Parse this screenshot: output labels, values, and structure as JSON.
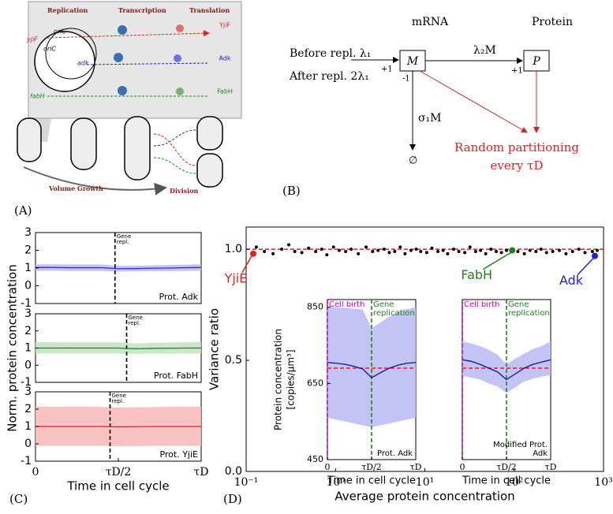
{
  "panel_labels": [
    "(A)",
    "(B)",
    "(C)",
    "(D)"
  ],
  "panel_a": {
    "stages": [
      "Replication",
      "Transcription",
      "Translation"
    ],
    "ori_labels": [
      "oriC",
      "oriC"
    ],
    "genes": [
      "yjiF",
      "adk",
      "fabH"
    ],
    "proteins": [
      "YjiF",
      "Adk",
      "FabH"
    ],
    "bottom": [
      "Volume Growth",
      "Division"
    ]
  },
  "panel_b": {
    "headers": [
      "mRNA",
      "Protein"
    ],
    "inputs": [
      "Before repl. λ₁",
      "After repl. 2λ₁"
    ],
    "m_in": "+1",
    "m_node": "M",
    "m_out": "-1",
    "translation": "λ₂M",
    "p_in": "+1",
    "p_node": "P",
    "degradation": "σ₁M",
    "sink": "∅",
    "partition": [
      "Random partitioning",
      "every τD"
    ]
  },
  "chart_data": [
    {
      "type": "line",
      "xlim": [
        0,
        1
      ],
      "ylim": [
        -1,
        3
      ],
      "yticks": [
        -1,
        0,
        1,
        2,
        3
      ],
      "x": [
        0,
        0.1,
        0.2,
        0.3,
        0.4,
        0.5,
        0.6,
        0.7,
        0.8,
        0.9,
        1
      ],
      "series": [
        {
          "name": "Prot. Adk",
          "color": "#3030d0",
          "band_color": "#b8b8f4",
          "values": [
            1.03,
            1.03,
            1.02,
            1.02,
            1.02,
            0.96,
            0.97,
            0.99,
            1.0,
            1.02,
            1.03
          ],
          "lower": [
            0.85,
            0.85,
            0.84,
            0.84,
            0.84,
            0.8,
            0.81,
            0.82,
            0.83,
            0.84,
            0.85
          ],
          "upper": [
            1.21,
            1.21,
            1.2,
            1.2,
            1.2,
            1.12,
            1.13,
            1.15,
            1.17,
            1.19,
            1.21
          ]
        }
      ],
      "vlines": [
        {
          "x": 0.48,
          "label": "Gene repl.",
          "color": "#000000"
        }
      ]
    },
    {
      "type": "line",
      "xlim": [
        0,
        1
      ],
      "ylim": [
        -1,
        3
      ],
      "yticks": [
        -1,
        0,
        1,
        2,
        3
      ],
      "ylabel": "Norm. protein concentration",
      "x": [
        0,
        0.1,
        0.2,
        0.3,
        0.4,
        0.5,
        0.6,
        0.7,
        0.8,
        0.9,
        1
      ],
      "series": [
        {
          "name": "Prot. FabH",
          "color": "#208020",
          "band_color": "#bfe3bf",
          "values": [
            1.0,
            1.0,
            1.0,
            1.0,
            1.0,
            1.0,
            0.96,
            0.98,
            0.99,
            1.0,
            1.0
          ],
          "lower": [
            0.68,
            0.68,
            0.68,
            0.68,
            0.68,
            0.68,
            0.66,
            0.67,
            0.67,
            0.68,
            0.68
          ],
          "upper": [
            1.35,
            1.35,
            1.34,
            1.34,
            1.34,
            1.34,
            1.27,
            1.3,
            1.32,
            1.34,
            1.35
          ]
        }
      ],
      "vlines": [
        {
          "x": 0.55,
          "label": "Gene repl.",
          "color": "#000000"
        }
      ]
    },
    {
      "type": "line",
      "xlim": [
        0,
        1
      ],
      "ylim": [
        -1,
        3
      ],
      "yticks": [
        -1,
        0,
        1,
        2,
        3
      ],
      "xticks": [
        0,
        {
          "value": 0.5,
          "label": "τD/2"
        },
        {
          "value": 1,
          "label": "τD"
        }
      ],
      "xlabel": "Time in cell cycle",
      "x": [
        0,
        0.1,
        0.2,
        0.3,
        0.4,
        0.5,
        0.6,
        0.7,
        0.8,
        0.9,
        1
      ],
      "series": [
        {
          "name": "Prot. YjiE",
          "color": "#e02020",
          "band_color": "#f9b8b8",
          "values": [
            1.0,
            1.0,
            1.0,
            1.0,
            1.0,
            0.98,
            0.99,
            1.0,
            1.0,
            1.0,
            1.0
          ],
          "lower": [
            -0.12,
            -0.12,
            -0.12,
            -0.12,
            -0.12,
            -0.14,
            -0.13,
            -0.12,
            -0.12,
            -0.12,
            -0.12
          ],
          "upper": [
            2.15,
            2.15,
            2.14,
            2.14,
            2.13,
            2.1,
            2.11,
            2.12,
            2.13,
            2.14,
            2.15
          ]
        }
      ],
      "vlines": [
        {
          "x": 0.45,
          "label": "Gene repl.",
          "color": "#000000"
        }
      ]
    },
    {
      "type": "scatter",
      "xlog": true,
      "xlim": [
        0.1,
        1000
      ],
      "ylim": [
        0,
        1.1
      ],
      "xticks": [
        {
          "value": 0.1,
          "label": "10⁻¹"
        },
        {
          "value": 1,
          "label": "10⁰"
        },
        {
          "value": 10,
          "label": "10¹"
        },
        {
          "value": 100,
          "label": "10²"
        },
        {
          "value": 1000,
          "label": "10³"
        }
      ],
      "yticks": [
        {
          "value": 0,
          "label": "0.0"
        },
        0.5,
        {
          "value": 1,
          "label": "1.0"
        }
      ],
      "xlabel": "Average protein concentration",
      "ylabel": "Variance ratio",
      "hline": {
        "y": 1,
        "color": "#e02020"
      },
      "series": [
        {
          "color": "#000000",
          "x": [
            0.13,
            0.16,
            0.2,
            0.25,
            0.3,
            0.35,
            0.42,
            0.5,
            0.6,
            0.7,
            0.8,
            0.95,
            1.1,
            1.3,
            1.5,
            1.8,
            2.2,
            2.6,
            3,
            3.5,
            4,
            4.6,
            5.3,
            6,
            7,
            8,
            9,
            10.5,
            12,
            14,
            16,
            18,
            21,
            24,
            28,
            32,
            37,
            42,
            48,
            55,
            63,
            72,
            82,
            95,
            110,
            130,
            150,
            175,
            200,
            230,
            270,
            320,
            380,
            450,
            530,
            620,
            750,
            850
          ],
          "values": [
            1.01,
            0.99,
            0.98,
            1.0,
            1.02,
            0.99,
            0.985,
            1.005,
            0.99,
            1.0,
            0.975,
            1.01,
            0.995,
            0.99,
            1.0,
            0.98,
            1.01,
            0.99,
            0.995,
            1.0,
            0.985,
            0.99,
            1.01,
            0.98,
            0.995,
            1.0,
            0.99,
            0.985,
            1.005,
            0.99,
            0.995,
            0.98,
            1.0,
            0.99,
            0.985,
            1.01,
            0.99,
            0.995,
            0.98,
            1.0,
            0.99,
            0.985,
            0.995,
            1.0,
            0.99,
            0.98,
            0.995,
            0.99,
            1.0,
            0.985,
            0.99,
            0.995,
            0.98,
            0.99,
            1.0,
            0.985,
            0.99,
            0.995
          ]
        }
      ],
      "highlights": [
        {
          "name": "YjiE",
          "x": 0.12,
          "y": 0.98,
          "color": "#e02020"
        },
        {
          "name": "FabH",
          "x": 95,
          "y": 0.995,
          "color": "#208020"
        },
        {
          "name": "Adk",
          "x": 800,
          "y": 0.97,
          "color": "#2020e0"
        }
      ]
    },
    {
      "type": "line",
      "xlim": [
        0,
        1
      ],
      "ylim": [
        450,
        870
      ],
      "yticks": [
        450,
        650,
        850
      ],
      "xticks": [
        0,
        {
          "value": 0.5,
          "label": "τD/2"
        },
        {
          "value": 1,
          "label": "τD"
        }
      ],
      "xlabel": "Time in cell cycle",
      "ylabel": [
        "Protein concentration",
        "[copies/μm³]"
      ],
      "hline": {
        "y": 690,
        "color": "#e02020"
      },
      "x": [
        0,
        0.1,
        0.2,
        0.3,
        0.4,
        0.5,
        0.6,
        0.7,
        0.8,
        0.9,
        1
      ],
      "series": [
        {
          "name": "Prot. Adk",
          "color": "#1010a0",
          "band_color": "#b8b8f4",
          "values": [
            705,
            703,
            700,
            695,
            688,
            665,
            678,
            690,
            698,
            703,
            705
          ],
          "lower": [
            560,
            555,
            550,
            545,
            540,
            535,
            540,
            545,
            550,
            555,
            560
          ],
          "upper": [
            850,
            850,
            848,
            846,
            844,
            795,
            810,
            825,
            838,
            845,
            850
          ]
        }
      ],
      "vlines": [
        {
          "x": 0,
          "label": "Cell birth",
          "color": "#c000c0"
        },
        {
          "x": 0.5,
          "label": "Gene replication",
          "color": "#208020"
        }
      ]
    },
    {
      "type": "line",
      "xlim": [
        0,
        1
      ],
      "ylim": [
        450,
        870
      ],
      "xticks": [
        0,
        {
          "value": 0.5,
          "label": "τD/2"
        },
        {
          "value": 1,
          "label": "τD"
        }
      ],
      "xlabel": "Time in cell cycle",
      "hline": {
        "y": 690,
        "color": "#e02020"
      },
      "x": [
        0,
        0.1,
        0.2,
        0.3,
        0.4,
        0.5,
        0.6,
        0.7,
        0.8,
        0.9,
        1
      ],
      "series": [
        {
          "name": "Modified Prot. Adk",
          "color": "#1010a0",
          "band_color": "#b8b8f4",
          "values": [
            712,
            708,
            700,
            690,
            680,
            660,
            675,
            690,
            700,
            706,
            712
          ],
          "lower": [
            670,
            665,
            660,
            650,
            642,
            625,
            640,
            655,
            662,
            668,
            672
          ],
          "upper": [
            760,
            755,
            748,
            738,
            725,
            700,
            715,
            728,
            740,
            748,
            760
          ]
        }
      ],
      "vlines": [
        {
          "x": 0,
          "label": "Cell birth",
          "color": "#c000c0"
        },
        {
          "x": 0.5,
          "label": "Gene replication",
          "color": "#208020"
        }
      ]
    }
  ]
}
